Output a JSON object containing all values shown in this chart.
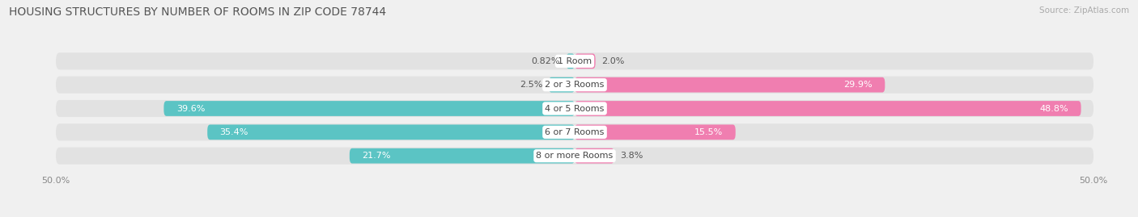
{
  "title": "HOUSING STRUCTURES BY NUMBER OF ROOMS IN ZIP CODE 78744",
  "source": "Source: ZipAtlas.com",
  "categories": [
    "1 Room",
    "2 or 3 Rooms",
    "4 or 5 Rooms",
    "6 or 7 Rooms",
    "8 or more Rooms"
  ],
  "owner_values": [
    0.82,
    2.5,
    39.6,
    35.4,
    21.7
  ],
  "renter_values": [
    2.0,
    29.9,
    48.8,
    15.5,
    3.8
  ],
  "owner_color": "#5BC4C4",
  "renter_color": "#F07EB0",
  "axis_limit": 50.0,
  "bg_color": "#f0f0f0",
  "bar_bg_color": "#e2e2e2",
  "title_fontsize": 10,
  "source_fontsize": 7.5,
  "value_fontsize": 8,
  "cat_fontsize": 8,
  "axis_label_fontsize": 8,
  "bar_height": 0.72,
  "bar_gap": 0.28,
  "inside_threshold": 8.0
}
